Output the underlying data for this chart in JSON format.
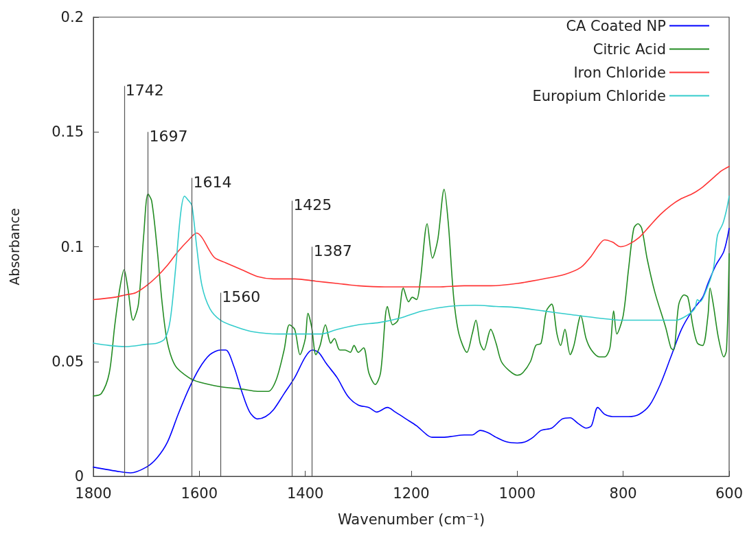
{
  "chart_data": {
    "type": "line",
    "xlabel": "Wavenumber (cm⁻¹)",
    "ylabel": "Absorbance",
    "xlim": [
      1800,
      600
    ],
    "xticks": [
      1800,
      1600,
      1400,
      1200,
      1000,
      800,
      600
    ],
    "ylim": [
      0,
      0.2
    ],
    "yticks": [
      0,
      0.05,
      0.1,
      0.15,
      0.2
    ],
    "grid": false,
    "legend": "top right",
    "marker": "none",
    "line_style": "solid",
    "ref_lines": [
      {
        "axis": "x",
        "value": 1742,
        "label": "1742",
        "color": "#555555"
      },
      {
        "axis": "x",
        "value": 1697,
        "label": "1697",
        "color": "#555555"
      },
      {
        "axis": "x",
        "value": 1614,
        "label": "1614",
        "color": "#555555"
      },
      {
        "axis": "x",
        "value": 1560,
        "label": "1560",
        "color": "#555555"
      },
      {
        "axis": "x",
        "value": 1425,
        "label": "1425",
        "color": "#555555"
      },
      {
        "axis": "x",
        "value": 1387,
        "label": "1387",
        "color": "#555555"
      }
    ],
    "series": [
      {
        "name": "CA Coated NP",
        "color": "#0000ff",
        "x": [
          1800,
          1750,
          1730,
          1700,
          1680,
          1660,
          1640,
          1620,
          1600,
          1580,
          1560,
          1550,
          1535,
          1520,
          1505,
          1490,
          1475,
          1460,
          1440,
          1420,
          1400,
          1387,
          1375,
          1360,
          1340,
          1320,
          1300,
          1280,
          1265,
          1245,
          1230,
          1210,
          1190,
          1170,
          1160,
          1140,
          1120,
          1100,
          1085,
          1070,
          1055,
          1040,
          1020,
          1000,
          985,
          970,
          955,
          935,
          915,
          900,
          885,
          870,
          860,
          848,
          835,
          820,
          790,
          770,
          750,
          730,
          710,
          690,
          670,
          650,
          640,
          625,
          610,
          600
        ],
        "values": [
          0.004,
          0.002,
          0.0015,
          0.004,
          0.008,
          0.015,
          0.027,
          0.038,
          0.047,
          0.053,
          0.055,
          0.055,
          0.048,
          0.037,
          0.028,
          0.025,
          0.026,
          0.029,
          0.036,
          0.043,
          0.052,
          0.055,
          0.054,
          0.049,
          0.043,
          0.035,
          0.031,
          0.03,
          0.028,
          0.03,
          0.028,
          0.025,
          0.022,
          0.018,
          0.017,
          0.017,
          0.0175,
          0.018,
          0.018,
          0.02,
          0.019,
          0.017,
          0.015,
          0.0145,
          0.015,
          0.017,
          0.02,
          0.021,
          0.025,
          0.0255,
          0.023,
          0.021,
          0.022,
          0.03,
          0.027,
          0.026,
          0.026,
          0.027,
          0.031,
          0.04,
          0.052,
          0.064,
          0.072,
          0.078,
          0.084,
          0.092,
          0.098,
          0.108
        ]
      },
      {
        "name": "Citric Acid",
        "color": "#228b22",
        "x": [
          1800,
          1785,
          1770,
          1760,
          1750,
          1742,
          1735,
          1725,
          1715,
          1705,
          1697,
          1690,
          1680,
          1670,
          1660,
          1645,
          1620,
          1600,
          1560,
          1520,
          1490,
          1470,
          1455,
          1440,
          1430,
          1420,
          1410,
          1400,
          1395,
          1388,
          1380,
          1372,
          1362,
          1352,
          1345,
          1335,
          1325,
          1315,
          1308,
          1300,
          1290,
          1280,
          1268,
          1258,
          1245,
          1235,
          1225,
          1215,
          1205,
          1198,
          1190,
          1183,
          1170,
          1160,
          1150,
          1138,
          1130,
          1120,
          1110,
          1095,
          1085,
          1078,
          1070,
          1063,
          1050,
          1040,
          1030,
          1015,
          1000,
          990,
          975,
          965,
          955,
          945,
          935,
          925,
          918,
          910,
          900,
          893,
          880,
          870,
          860,
          845,
          835,
          825,
          818,
          812,
          800,
          790,
          780,
          772,
          765,
          755,
          740,
          720,
          710,
          705,
          695,
          685,
          678,
          668,
          660,
          650,
          640,
          636,
          630,
          620,
          610,
          605,
          600
        ],
        "values": [
          0.035,
          0.036,
          0.045,
          0.065,
          0.082,
          0.09,
          0.082,
          0.068,
          0.075,
          0.105,
          0.123,
          0.12,
          0.1,
          0.075,
          0.058,
          0.048,
          0.043,
          0.041,
          0.039,
          0.038,
          0.037,
          0.037,
          0.042,
          0.055,
          0.066,
          0.064,
          0.053,
          0.06,
          0.071,
          0.065,
          0.053,
          0.057,
          0.066,
          0.058,
          0.06,
          0.055,
          0.055,
          0.054,
          0.057,
          0.054,
          0.056,
          0.045,
          0.04,
          0.045,
          0.074,
          0.066,
          0.068,
          0.082,
          0.076,
          0.078,
          0.077,
          0.085,
          0.11,
          0.095,
          0.103,
          0.125,
          0.11,
          0.078,
          0.062,
          0.054,
          0.062,
          0.068,
          0.058,
          0.055,
          0.064,
          0.058,
          0.05,
          0.046,
          0.044,
          0.045,
          0.05,
          0.057,
          0.058,
          0.072,
          0.075,
          0.062,
          0.057,
          0.064,
          0.053,
          0.057,
          0.07,
          0.06,
          0.055,
          0.052,
          0.052,
          0.056,
          0.072,
          0.062,
          0.07,
          0.09,
          0.108,
          0.11,
          0.108,
          0.095,
          0.08,
          0.065,
          0.056,
          0.055,
          0.075,
          0.079,
          0.078,
          0.065,
          0.058,
          0.057,
          0.07,
          0.082,
          0.075,
          0.06,
          0.052,
          0.055,
          0.097
        ]
      },
      {
        "name": "Iron Chloride",
        "color": "#ff3333",
        "x": [
          1800,
          1760,
          1740,
          1720,
          1700,
          1680,
          1660,
          1640,
          1620,
          1605,
          1595,
          1580,
          1570,
          1550,
          1520,
          1490,
          1460,
          1420,
          1380,
          1340,
          1300,
          1250,
          1200,
          1150,
          1100,
          1050,
          1000,
          950,
          910,
          880,
          860,
          845,
          835,
          820,
          805,
          790,
          770,
          750,
          730,
          710,
          690,
          670,
          650,
          630,
          615,
          600
        ],
        "values": [
          0.077,
          0.078,
          0.079,
          0.08,
          0.083,
          0.087,
          0.092,
          0.098,
          0.103,
          0.106,
          0.104,
          0.098,
          0.095,
          0.093,
          0.09,
          0.087,
          0.086,
          0.086,
          0.085,
          0.084,
          0.083,
          0.0825,
          0.0825,
          0.0825,
          0.083,
          0.083,
          0.084,
          0.086,
          0.088,
          0.091,
          0.096,
          0.101,
          0.103,
          0.102,
          0.1,
          0.101,
          0.104,
          0.109,
          0.114,
          0.118,
          0.121,
          0.123,
          0.126,
          0.13,
          0.133,
          0.135
        ]
      },
      {
        "name": "Europium Chloride",
        "color": "#33cccc",
        "x": [
          1800,
          1770,
          1740,
          1700,
          1680,
          1665,
          1655,
          1645,
          1635,
          1628,
          1620,
          1614,
          1605,
          1595,
          1580,
          1560,
          1530,
          1500,
          1450,
          1400,
          1370,
          1340,
          1300,
          1260,
          1220,
          1180,
          1130,
          1080,
          1040,
          1000,
          950,
          900,
          850,
          800,
          750,
          700,
          680,
          665,
          660,
          655,
          645,
          630,
          622,
          612,
          605,
          600
        ],
        "values": [
          0.058,
          0.057,
          0.0565,
          0.0575,
          0.058,
          0.06,
          0.068,
          0.09,
          0.115,
          0.122,
          0.12,
          0.118,
          0.1,
          0.083,
          0.073,
          0.068,
          0.065,
          0.063,
          0.062,
          0.062,
          0.062,
          0.064,
          0.066,
          0.067,
          0.069,
          0.072,
          0.074,
          0.0745,
          0.074,
          0.0735,
          0.072,
          0.0705,
          0.069,
          0.068,
          0.068,
          0.068,
          0.07,
          0.073,
          0.077,
          0.076,
          0.08,
          0.09,
          0.105,
          0.11,
          0.116,
          0.122
        ]
      }
    ]
  }
}
